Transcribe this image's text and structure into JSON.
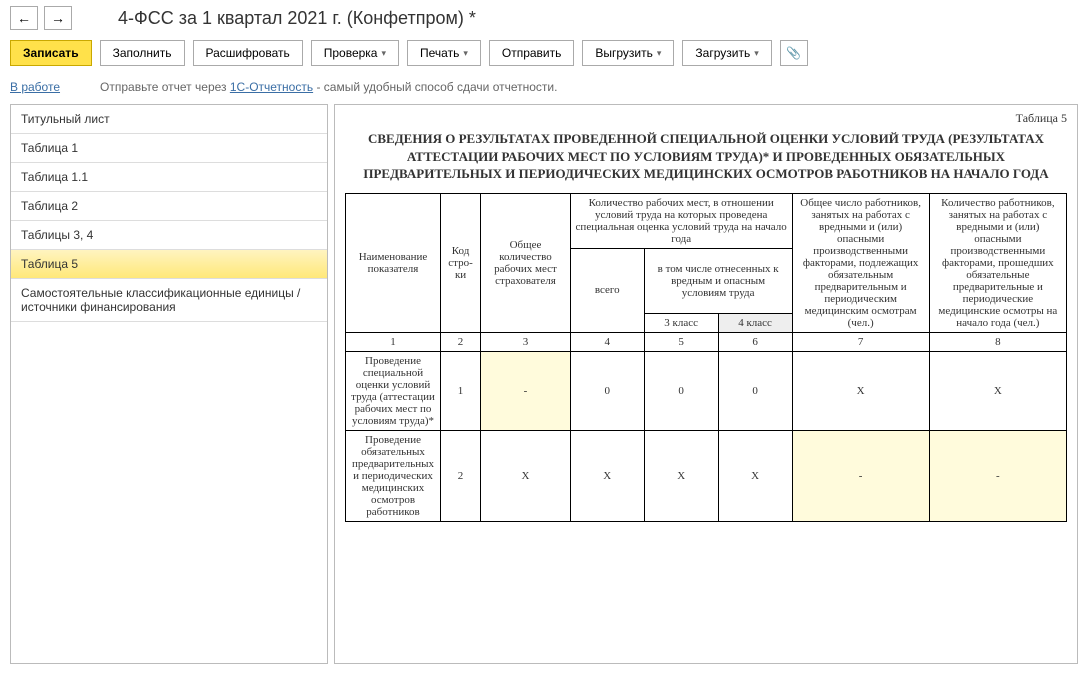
{
  "title": "4-ФСС за 1 квартал 2021 г. (Конфетпром) *",
  "nav": {
    "back": "←",
    "fwd": "→"
  },
  "toolbar": {
    "save": "Записать",
    "fill": "Заполнить",
    "decode": "Расшифровать",
    "check": "Проверка",
    "print": "Печать",
    "send": "Отправить",
    "export": "Выгрузить",
    "import": "Загрузить",
    "clip": "📎"
  },
  "status": {
    "label": "В работе",
    "hint_pre": "Отправьте отчет через ",
    "hint_link": "1С-Отчетность",
    "hint_post": " - самый удобный способ сдачи отчетности."
  },
  "sidebar": [
    "Титульный лист",
    "Таблица 1",
    "Таблица 1.1",
    "Таблица 2",
    "Таблицы 3, 4",
    "Таблица 5",
    "Самостоятельные классификационные единицы / источники финансирования"
  ],
  "sidebar_selected": 5,
  "doc": {
    "tablelabel": "Таблица 5",
    "heading": "СВЕДЕНИЯ  О РЕЗУЛЬТАТАХ ПРОВЕДЕННОЙ СПЕЦИАЛЬНОЙ ОЦЕНКИ УСЛОВИЙ ТРУДА (РЕЗУЛЬТАТАХ АТТЕСТАЦИИ РАБОЧИХ МЕСТ ПО УСЛОВИЯМ ТРУДА)*  И ПРОВЕДЕННЫХ ОБЯЗАТЕЛЬНЫХ ПРЕДВАРИТЕЛЬНЫХ И ПЕРИОДИЧЕСКИХ МЕДИЦИНСКИХ ОСМОТРОВ РАБОТНИКОВ НА НАЧАЛО ГОДА",
    "head": {
      "c1": "Наименование показателя",
      "c2": "Код стро-ки",
      "c3": "Общее количество рабочих мест страхователя",
      "c456_top": "Количество рабочих мест, в отношении условий труда на которых проведена специальная оценка условий труда на начало года",
      "c4": "всего",
      "c56": "в том числе отнесенных к вредным и опасным условиям труда",
      "c5": "3 класс",
      "c6": "4 класс",
      "c7": "Общее число работников, занятых на работах с вредными и (или) опасными производственными факторами, подлежащих обязательным предварительным и периодическим медицинским осмотрам (чел.)",
      "c8": "Количество работников, занятых на работах с вредными и (или) опасными производственными факторами, прошедших обязательные предварительные и периодические медицинские осмотры на начало года (чел.)"
    },
    "nums": {
      "n1": "1",
      "n2": "2",
      "n3": "3",
      "n4": "4",
      "n5": "5",
      "n6": "6",
      "n7": "7",
      "n8": "8"
    },
    "row1": {
      "name": "Проведение специальной оценки условий труда (аттестации рабочих мест по условиям труда)*",
      "code": "1",
      "c3": "-",
      "c4": "0",
      "c5": "0",
      "c6": "0",
      "c7": "X",
      "c8": "X"
    },
    "row2": {
      "name": "Проведение обязательных предварительных и периодических медицинских осмотров работников",
      "code": "2",
      "c3": "X",
      "c4": "X",
      "c5": "X",
      "c6": "X",
      "c7": "-",
      "c8": "-"
    }
  }
}
